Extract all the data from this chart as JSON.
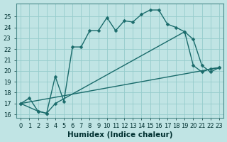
{
  "xlabel": "Humidex (Indice chaleur)",
  "bg_color": "#c0e4e4",
  "grid_color": "#96cccc",
  "line_color": "#1a6b6b",
  "xlim": [
    -0.5,
    23.5
  ],
  "ylim": [
    15.7,
    26.2
  ],
  "xticks": [
    0,
    1,
    2,
    3,
    4,
    5,
    6,
    7,
    8,
    9,
    10,
    11,
    12,
    13,
    14,
    15,
    16,
    17,
    18,
    19,
    20,
    21,
    22,
    23
  ],
  "yticks": [
    16,
    17,
    18,
    19,
    20,
    21,
    22,
    23,
    24,
    25
  ],
  "curve1_x": [
    0,
    1,
    2,
    3,
    4,
    5,
    6,
    7,
    8,
    9,
    10,
    11,
    12,
    13,
    14,
    15,
    16,
    17,
    18,
    19,
    20,
    21,
    22,
    23
  ],
  "curve1_y": [
    17.0,
    17.5,
    16.3,
    16.1,
    19.5,
    17.2,
    22.2,
    22.2,
    23.7,
    23.7,
    24.9,
    23.7,
    24.6,
    24.5,
    25.2,
    25.6,
    25.6,
    24.3,
    24.0,
    23.6,
    20.5,
    19.9,
    20.2,
    20.3
  ],
  "curve2_x": [
    0,
    2,
    3,
    4,
    19,
    20,
    21,
    22,
    23
  ],
  "curve2_y": [
    17.0,
    16.3,
    16.1,
    17.0,
    23.6,
    22.9,
    20.5,
    19.9,
    20.3
  ],
  "curve3_x": [
    0,
    23
  ],
  "curve3_y": [
    17.0,
    20.3
  ],
  "ms": 2.5,
  "lw": 1.0,
  "tick_fs": 6.0,
  "label_fs": 7.5
}
